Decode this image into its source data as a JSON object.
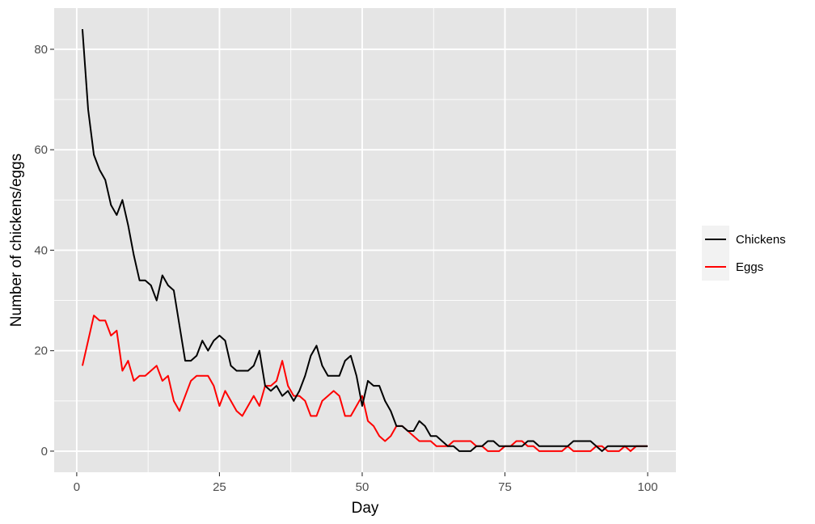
{
  "chart_data": {
    "type": "line",
    "title": "",
    "xlabel": "Day",
    "ylabel": "Number of chickens/eggs",
    "xlim": [
      -3.95,
      104.95
    ],
    "ylim": [
      -4.2,
      88.2
    ],
    "x_ticks": [
      0,
      25,
      50,
      75,
      100
    ],
    "x_tick_labels": [
      "0",
      "25",
      "50",
      "75",
      "100"
    ],
    "y_ticks": [
      0,
      20,
      40,
      60,
      80
    ],
    "y_tick_labels": [
      "0",
      "20",
      "40",
      "60",
      "80"
    ],
    "grid": true,
    "legend_position": "right",
    "background": "#e5e5e5",
    "gridline_color": "#ffffff",
    "x": [
      1,
      2,
      3,
      4,
      5,
      6,
      7,
      8,
      9,
      10,
      11,
      12,
      13,
      14,
      15,
      16,
      17,
      18,
      19,
      20,
      21,
      22,
      23,
      24,
      25,
      26,
      27,
      28,
      29,
      30,
      31,
      32,
      33,
      34,
      35,
      36,
      37,
      38,
      39,
      40,
      41,
      42,
      43,
      44,
      45,
      46,
      47,
      48,
      49,
      50,
      51,
      52,
      53,
      54,
      55,
      56,
      57,
      58,
      59,
      60,
      61,
      62,
      63,
      64,
      65,
      66,
      67,
      68,
      69,
      70,
      71,
      72,
      73,
      74,
      75,
      76,
      77,
      78,
      79,
      80,
      81,
      82,
      83,
      84,
      85,
      86,
      87,
      88,
      89,
      90,
      91,
      92,
      93,
      94,
      95,
      96,
      97,
      98,
      99,
      100
    ],
    "series": [
      {
        "name": "Chickens",
        "color": "#000000",
        "values": [
          84,
          68,
          59,
          56,
          54,
          49,
          47,
          50,
          45,
          39,
          34,
          34,
          33,
          30,
          35,
          33,
          32,
          25,
          18,
          18,
          19,
          22,
          20,
          22,
          23,
          22,
          17,
          16,
          16,
          16,
          17,
          20,
          13,
          12,
          13,
          11,
          12,
          10,
          12,
          15,
          19,
          21,
          17,
          15,
          15,
          15,
          18,
          19,
          15,
          9,
          14,
          13,
          13,
          10,
          8,
          5,
          5,
          4,
          4,
          6,
          5,
          3,
          3,
          2,
          1,
          1,
          0,
          0,
          0,
          1,
          1,
          2,
          2,
          1,
          1,
          1,
          1,
          1,
          2,
          2,
          1,
          1,
          1,
          1,
          1,
          1,
          2,
          2,
          2,
          2,
          1,
          0,
          1,
          1,
          1,
          1,
          1,
          1,
          1,
          1
        ]
      },
      {
        "name": "Eggs",
        "color": "#ff0000",
        "values": [
          17,
          22,
          27,
          26,
          26,
          23,
          24,
          16,
          18,
          14,
          15,
          15,
          16,
          17,
          14,
          15,
          10,
          8,
          11,
          14,
          15,
          15,
          15,
          13,
          9,
          12,
          10,
          8,
          7,
          9,
          11,
          9,
          13,
          13,
          14,
          18,
          13,
          11,
          11,
          10,
          7,
          7,
          10,
          11,
          12,
          11,
          7,
          7,
          9,
          11,
          6,
          5,
          3,
          2,
          3,
          5,
          5,
          4,
          3,
          2,
          2,
          2,
          1,
          1,
          1,
          2,
          2,
          2,
          2,
          1,
          1,
          0,
          0,
          0,
          1,
          1,
          2,
          2,
          1,
          1,
          0,
          0,
          0,
          0,
          0,
          1,
          0,
          0,
          0,
          0,
          1,
          1,
          0,
          0,
          0,
          1,
          0,
          1,
          1,
          1
        ]
      }
    ]
  }
}
